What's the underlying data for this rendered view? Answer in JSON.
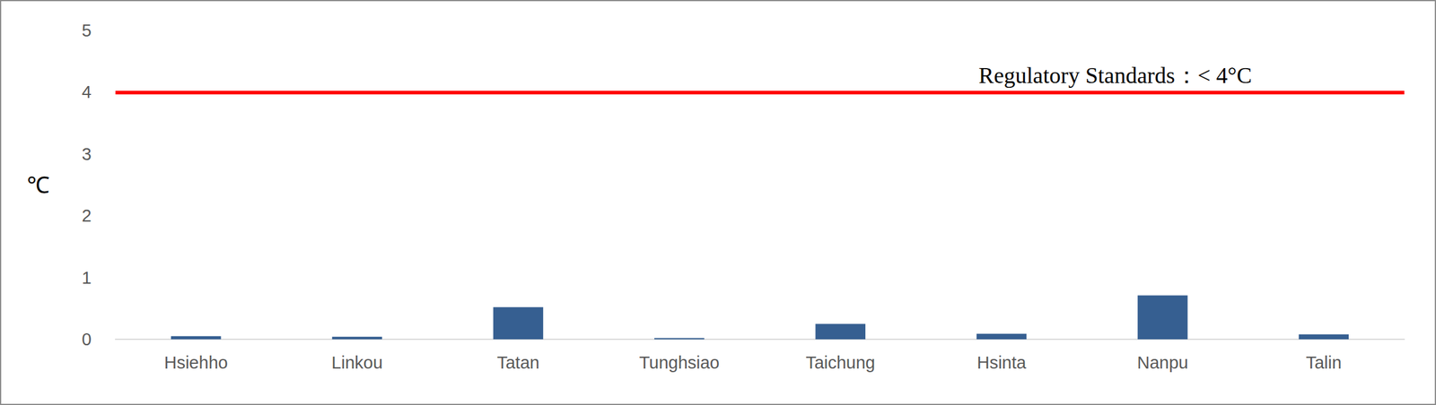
{
  "chart_data": {
    "type": "bar",
    "categories": [
      "Hsiehho",
      "Linkou",
      "Tatan",
      "Tunghsiao",
      "Taichung",
      "Hsinta",
      "Nanpu",
      "Talin"
    ],
    "values": [
      0.05,
      0.04,
      0.52,
      0.02,
      0.25,
      0.09,
      0.71,
      0.08
    ],
    "color": "#365f91",
    "y_label": "℃",
    "ylim": [
      0,
      5
    ],
    "yticks": [
      0,
      1,
      2,
      3,
      4,
      5
    ],
    "grid": false,
    "reference_line": {
      "value": 4,
      "label": "Regulatory Standards：< 4°C",
      "color": "#ff0000"
    }
  }
}
